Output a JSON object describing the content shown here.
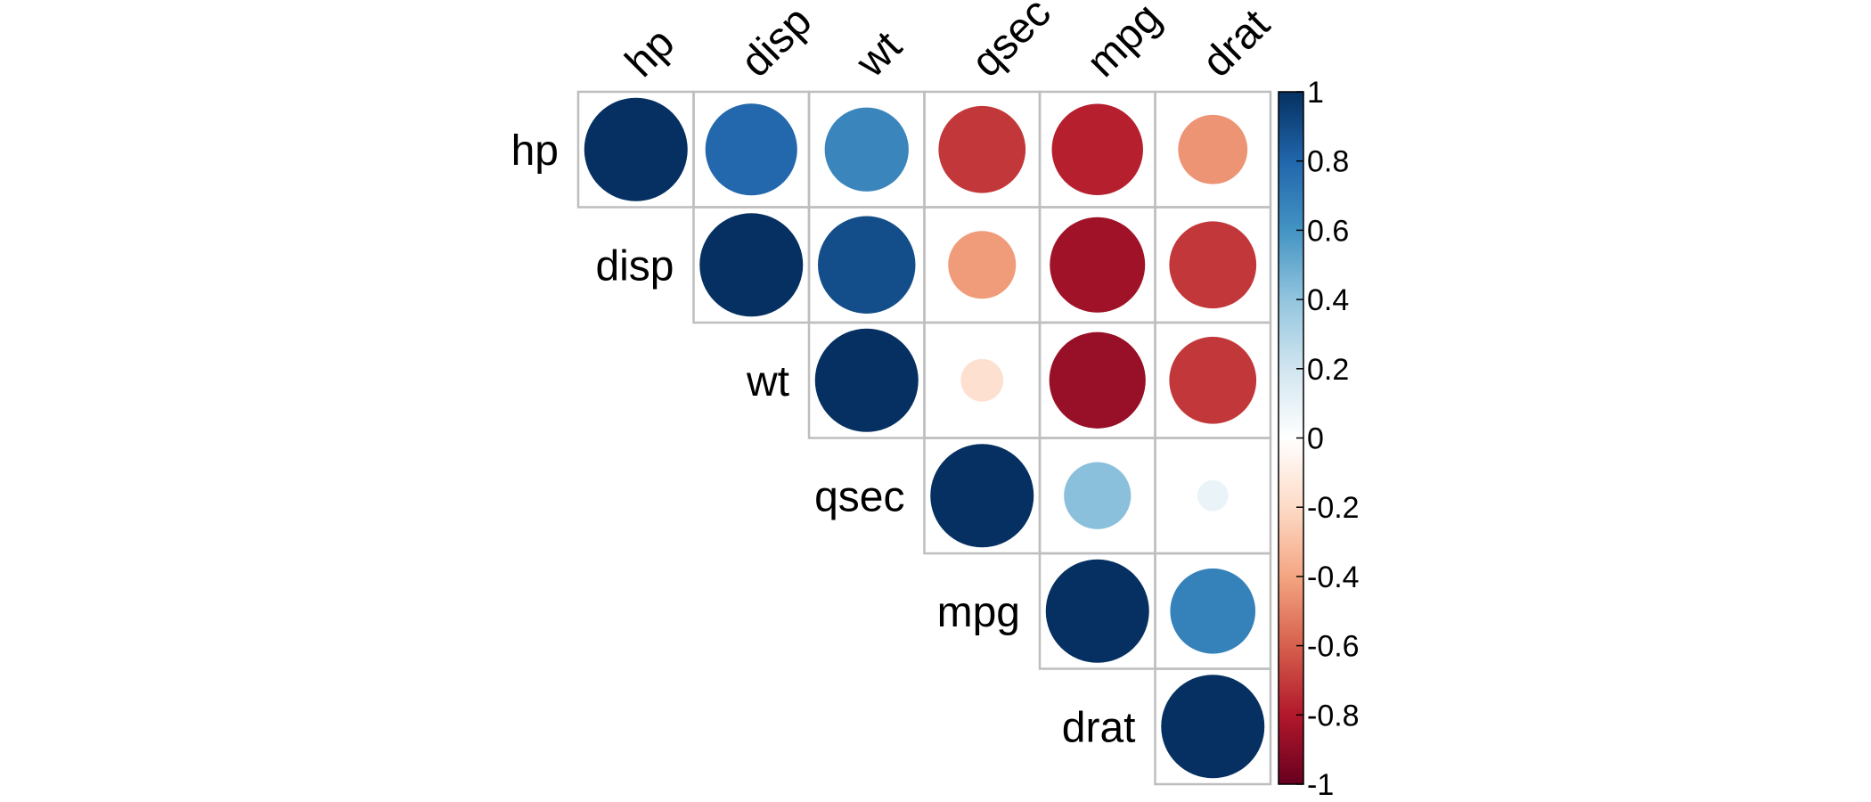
{
  "chart_data": {
    "type": "heatmap",
    "style": "correlation-circles-upper-triangle",
    "variables": [
      "hp",
      "disp",
      "wt",
      "qsec",
      "mpg",
      "drat"
    ],
    "matrix": [
      [
        1.0,
        0.79,
        0.66,
        -0.71,
        -0.78,
        -0.45
      ],
      [
        0.79,
        1.0,
        0.89,
        -0.43,
        -0.85,
        -0.71
      ],
      [
        0.66,
        0.89,
        1.0,
        -0.17,
        -0.87,
        -0.71
      ],
      [
        -0.71,
        -0.43,
        -0.17,
        1.0,
        0.42,
        0.09
      ],
      [
        -0.78,
        -0.85,
        -0.87,
        0.42,
        1.0,
        0.68
      ],
      [
        -0.45,
        -0.71,
        -0.71,
        0.09,
        0.68,
        1.0
      ]
    ],
    "color_scale": {
      "range": [
        -1,
        1
      ],
      "ticks": [
        "1",
        "0.8",
        "0.6",
        "0.4",
        "0.2",
        "0",
        "-0.2",
        "-0.4",
        "-0.6",
        "-0.8",
        "-1"
      ],
      "colors": [
        "#67001F",
        "#B2182B",
        "#D6604D",
        "#F4A582",
        "#FDDBC7",
        "#FFFFFF",
        "#D1E5F0",
        "#92C5DE",
        "#4393C3",
        "#2166AC",
        "#053061"
      ]
    },
    "grid_color": "#BEBEBE",
    "legend_position": "right"
  }
}
